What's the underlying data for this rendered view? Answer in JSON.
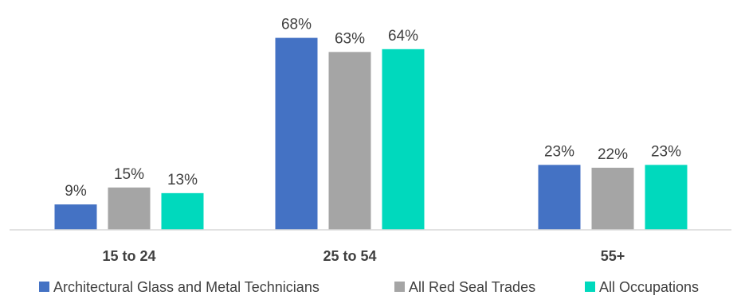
{
  "chart_data": {
    "type": "bar",
    "categories": [
      "15 to 24",
      "25 to 54",
      "55+"
    ],
    "series": [
      {
        "name": "Architectural Glass and Metal Technicians",
        "values": [
          9,
          68,
          23
        ],
        "labels": [
          "9%",
          "68%",
          "23%"
        ],
        "color": "#4472C4"
      },
      {
        "name": "All Red Seal Trades",
        "values": [
          15,
          63,
          22
        ],
        "labels": [
          "15%",
          "63%",
          "22%"
        ],
        "color": "#A5A5A5"
      },
      {
        "name": "All Occupations",
        "values": [
          13,
          64,
          23
        ],
        "labels": [
          "13%",
          "64%",
          "23%"
        ],
        "color": "#00D9BD"
      }
    ],
    "title": "",
    "xlabel": "",
    "ylabel": "",
    "ylim": [
      0,
      70
    ],
    "grid": false,
    "legend_position": "bottom",
    "value_unit": "%"
  }
}
